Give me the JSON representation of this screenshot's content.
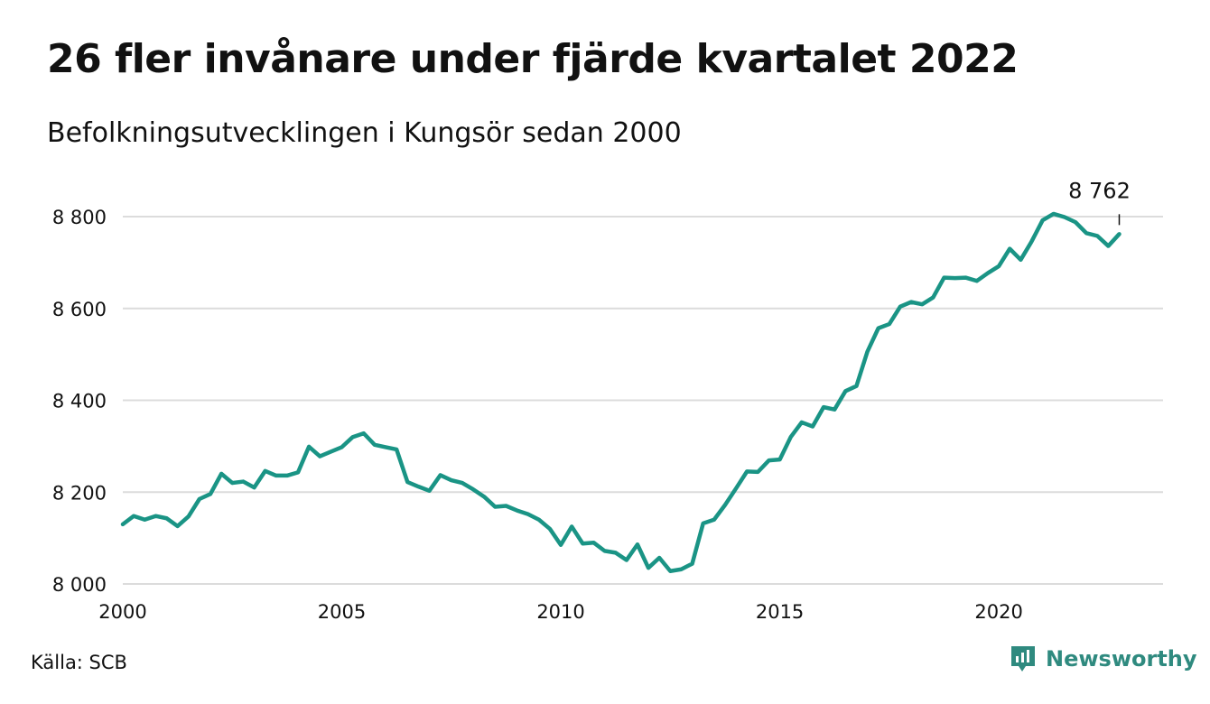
{
  "title": "26 fler invånare under fjärde kvartalet 2022",
  "subtitle": "Befolkningsutvecklingen i Kungsör sedan 2000",
  "source": "Källa: SCB",
  "brand": {
    "name": "Newsworthy",
    "icon": "newsworthy-logo-icon"
  },
  "colors": {
    "line": "#1a9485",
    "grid": "#dcdcdc"
  },
  "chart_data": {
    "type": "line",
    "x_start_year": 2000,
    "x_step_years": 0.25,
    "xlim": [
      2000,
      2023.75
    ],
    "ylim": [
      8000,
      8800
    ],
    "xticks": [
      2000,
      2005,
      2010,
      2015,
      2020
    ],
    "xtick_labels": [
      "2000",
      "2005",
      "2010",
      "2015",
      "2020"
    ],
    "yticks": [
      8000,
      8200,
      8400,
      8600,
      8800
    ],
    "ytick_labels": [
      "8 000",
      "8 200",
      "8 400",
      "8 600",
      "8 800"
    ],
    "grid": "horizontal",
    "annotation": {
      "label": "8 762",
      "year": 2022.75,
      "value": 8762
    },
    "series": [
      {
        "values": [
          8130,
          8148,
          8140,
          8148,
          8143,
          8126,
          8147,
          8185,
          8196,
          8240,
          8220,
          8223,
          8210,
          8246,
          8236,
          8236,
          8243,
          8299,
          8278,
          8288,
          8298,
          8320,
          8328,
          8303,
          8298,
          8293,
          8222,
          8212,
          8203,
          8237,
          8226,
          8220,
          8206,
          8190,
          8168,
          8170,
          8160,
          8152,
          8140,
          8120,
          8085,
          8125,
          8088,
          8090,
          8072,
          8068,
          8052,
          8086,
          8035,
          8057,
          8028,
          8032,
          8044,
          8132,
          8140,
          8172,
          8208,
          8245,
          8244,
          8269,
          8271,
          8320,
          8352,
          8343,
          8385,
          8380,
          8420,
          8431,
          8506,
          8557,
          8566,
          8604,
          8614,
          8609,
          8624,
          8667,
          8666,
          8667,
          8660,
          8677,
          8692,
          8730,
          8706,
          8746,
          8792,
          8806,
          8799,
          8788,
          8764,
          8758,
          8736,
          8762
        ]
      }
    ]
  }
}
